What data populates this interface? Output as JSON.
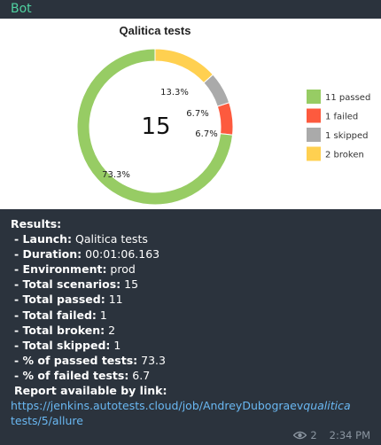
{
  "sender": "Bot",
  "chart_data": {
    "type": "pie",
    "title": "Qalitica tests",
    "center_label": "15",
    "categories": [
      "11 passed",
      "1 failed",
      "1 skipped",
      "2 broken"
    ],
    "values": [
      11,
      1,
      1,
      2
    ],
    "percent_labels": [
      "73.3%",
      "6.7%",
      "6.7%",
      "13.3%"
    ],
    "colors": [
      "#97cc64",
      "#fd5a3e",
      "#aaaaaa",
      "#ffd050"
    ],
    "legend_position": "right"
  },
  "message": {
    "results_label": "Results:",
    "items": [
      {
        "key": "- Launch:",
        "value": " Qalitica tests"
      },
      {
        "key": "- Duration:",
        "value": " 00:01:06.163"
      },
      {
        "key": "- Environment:",
        "value": " prod"
      },
      {
        "key": "- Total scenarios:",
        "value": " 15"
      },
      {
        "key": "- Total passed:",
        "value": " 11"
      },
      {
        "key": "- Total failed:",
        "value": " 1"
      },
      {
        "key": "- Total broken:",
        "value": " 2"
      },
      {
        "key": " - Total skipped:",
        "value": " 1"
      },
      {
        "key": "- % of passed tests:",
        "value": " 73.3"
      },
      {
        "key": "- % of failed tests:",
        "value": " 6.7"
      }
    ],
    "report_label": "Report available by link:",
    "link_part1": "https://jenkins.autotests.cloud/job/AndreyDubograev",
    "link_part2": "qualitica",
    "link_part3": " tests/5/allure"
  },
  "meta": {
    "views": "2",
    "time": "2:34 PM"
  }
}
